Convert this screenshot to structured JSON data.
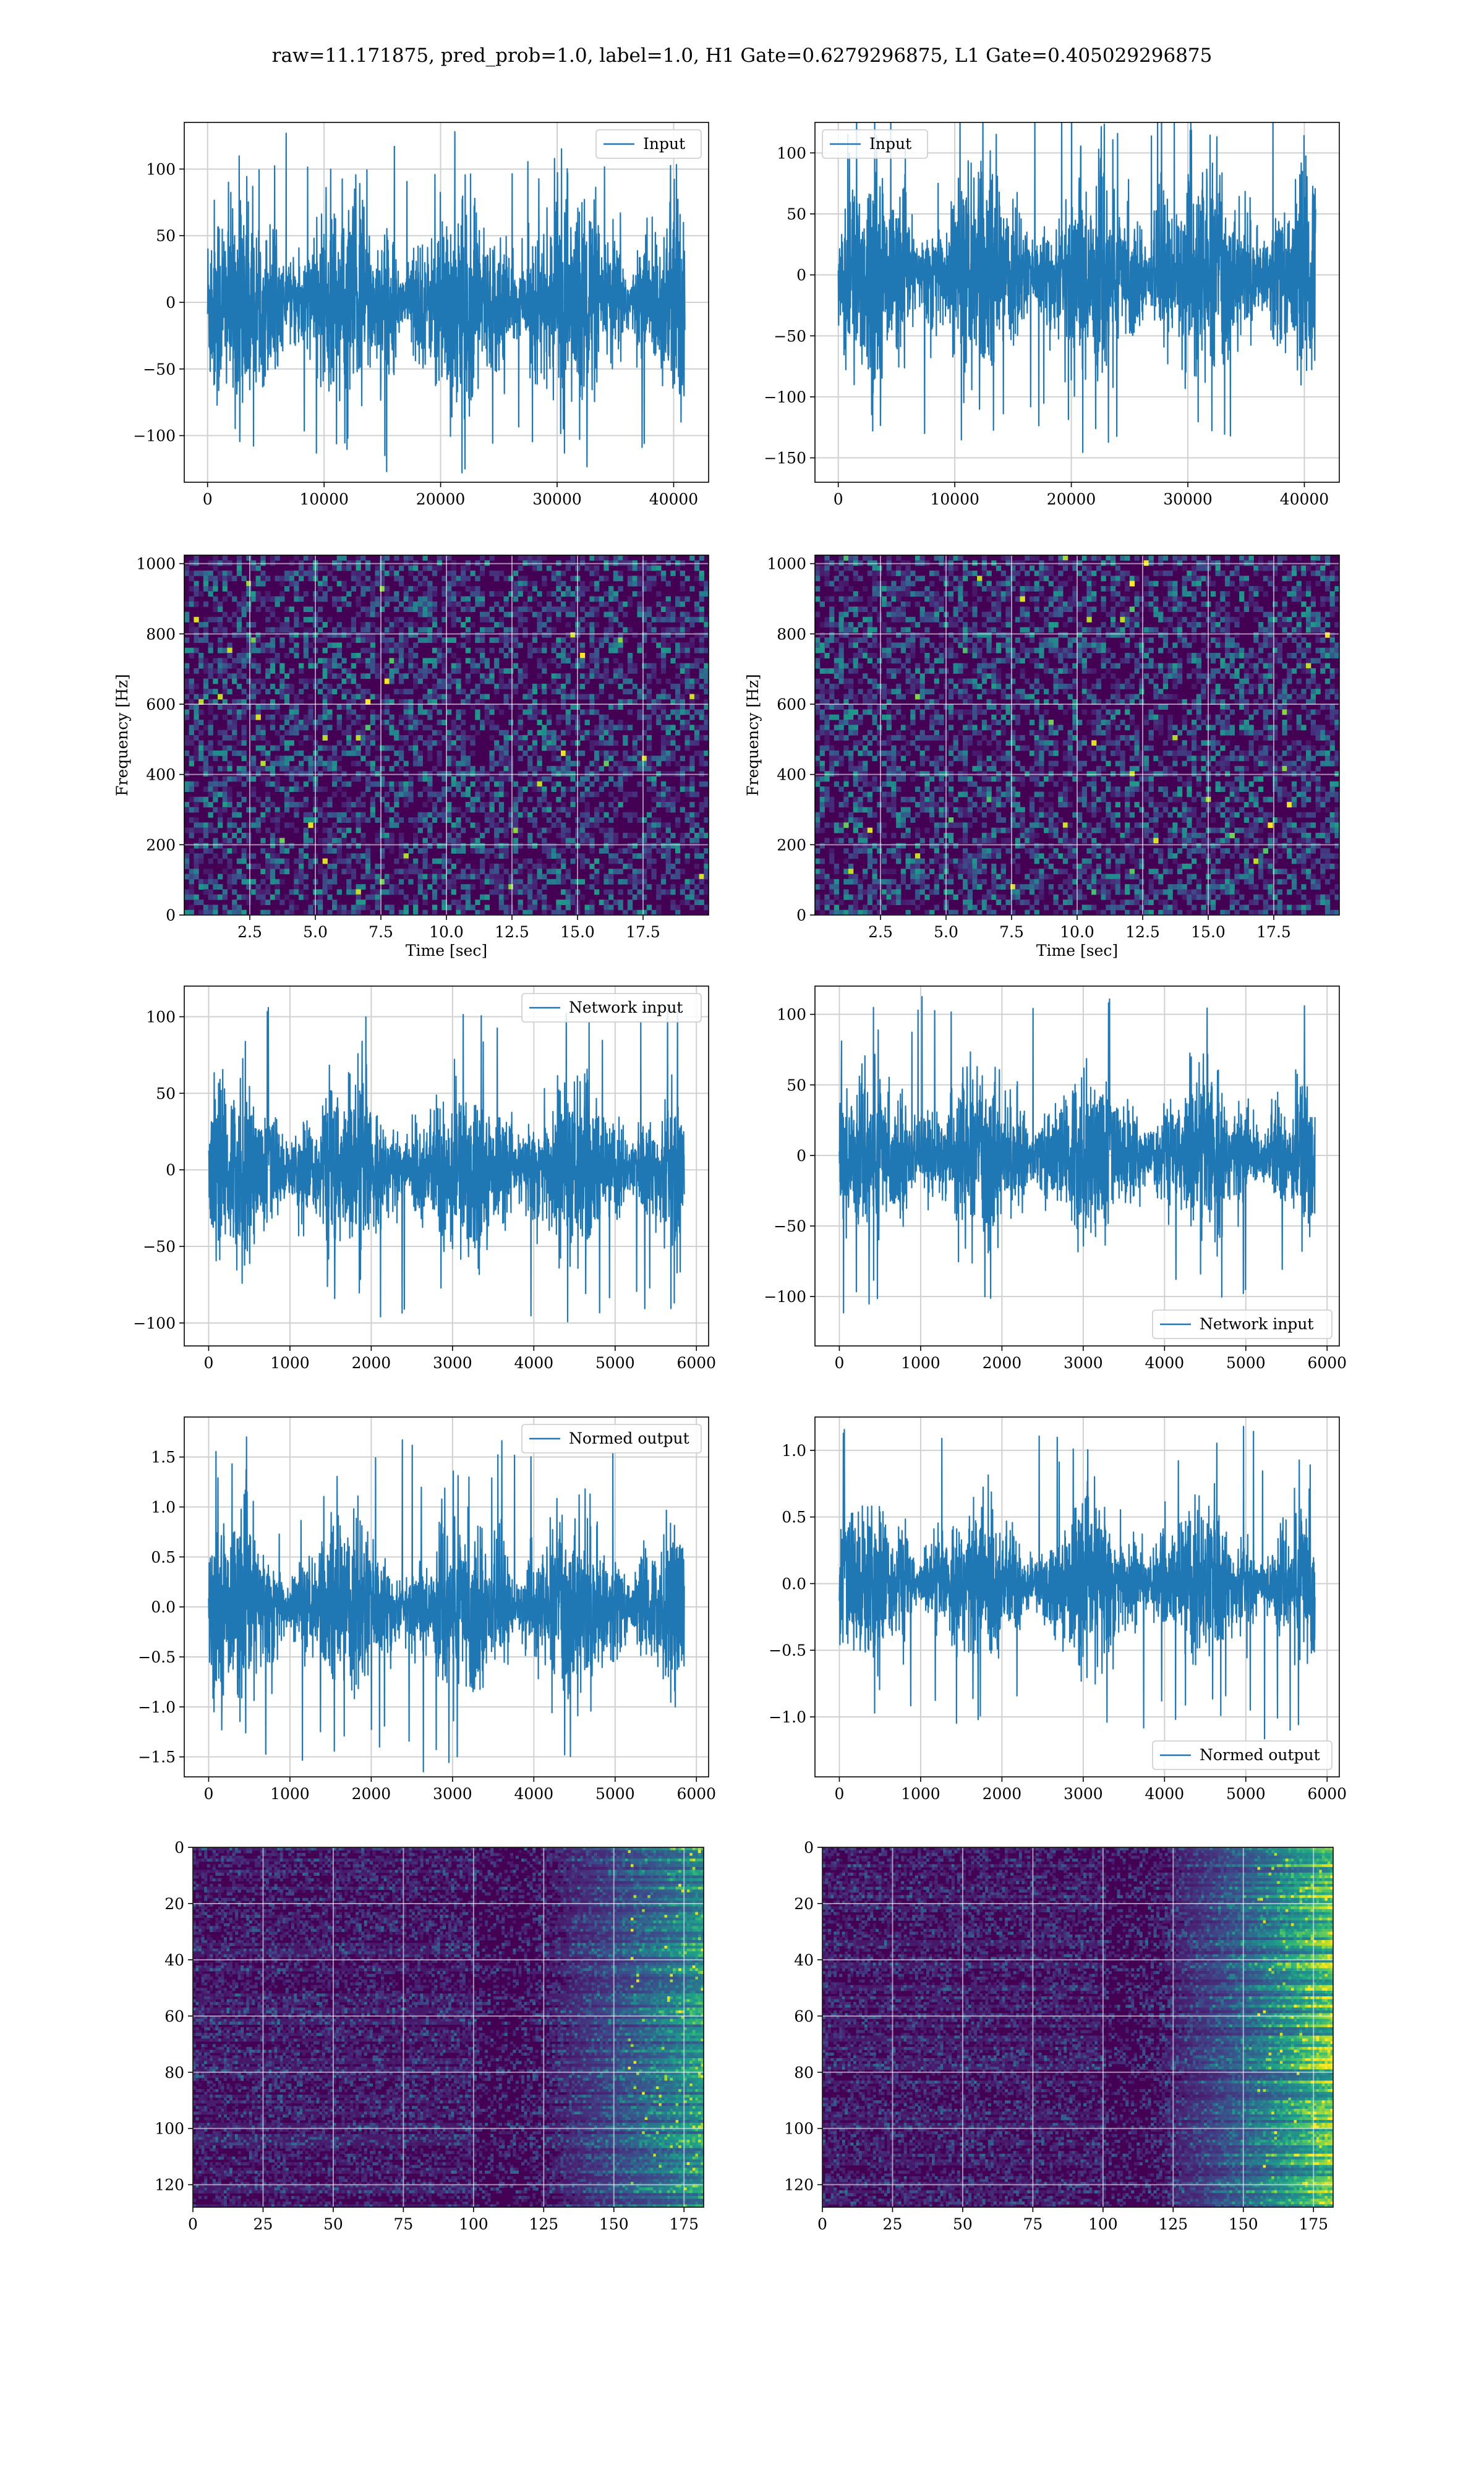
{
  "figure": {
    "title": "raw=11.171875, pred_prob=1.0, label=1.0, H1 Gate=0.6279296875, L1 Gate=0.405029296875"
  },
  "colors": {
    "line": "#1f77b4",
    "viridis_low": "#440154",
    "viridis_mid": "#21918c",
    "viridis_high": "#fde725",
    "grid": "#d0d0d0"
  },
  "chart_data": [
    {
      "id": "p11",
      "type": "line",
      "noise_amp": 35,
      "spike_max": 128,
      "xlim": [
        -2000,
        43000
      ],
      "ylim": [
        -135,
        135
      ],
      "xticks": [
        0,
        10000,
        20000,
        30000,
        40000
      ],
      "yticks": [
        -100,
        -50,
        0,
        50,
        100
      ],
      "x_range": [
        0,
        40960
      ],
      "legend": "Input",
      "legend_loc": "upper right",
      "xlabel": "",
      "ylabel": ""
    },
    {
      "id": "p12",
      "type": "line",
      "noise_amp": 38,
      "spike_max": 150,
      "xlim": [
        -2000,
        43000
      ],
      "ylim": [
        -170,
        125
      ],
      "xticks": [
        0,
        10000,
        20000,
        30000,
        40000
      ],
      "yticks": [
        -150,
        -100,
        -50,
        0,
        50,
        100
      ],
      "x_range": [
        0,
        40960
      ],
      "legend": "Input",
      "legend_loc": "upper left",
      "xlabel": "",
      "ylabel": ""
    },
    {
      "id": "p21",
      "type": "heatmap",
      "xlim": [
        0,
        20
      ],
      "ylim": [
        0,
        1024
      ],
      "xticks": [
        2.5,
        5.0,
        7.5,
        10.0,
        12.5,
        15.0,
        17.5
      ],
      "yticks": [
        0,
        200,
        400,
        600,
        800,
        1000
      ],
      "xlabel": "Time [sec]",
      "ylabel": "Frequency [Hz]"
    },
    {
      "id": "p22",
      "type": "heatmap",
      "xlim": [
        0,
        20
      ],
      "ylim": [
        0,
        1024
      ],
      "xticks": [
        2.5,
        5.0,
        7.5,
        10.0,
        12.5,
        15.0,
        17.5
      ],
      "yticks": [
        0,
        200,
        400,
        600,
        800,
        1000
      ],
      "xlabel": "Time [sec]",
      "ylabel": "Frequency [Hz]"
    },
    {
      "id": "p31",
      "type": "line",
      "noise_amp": 25,
      "spike_max": 110,
      "xlim": [
        -300,
        6150
      ],
      "ylim": [
        -115,
        120
      ],
      "xticks": [
        0,
        1000,
        2000,
        3000,
        4000,
        5000,
        6000
      ],
      "yticks": [
        -100,
        -50,
        0,
        50,
        100
      ],
      "x_range": [
        0,
        5850
      ],
      "legend": "Network input",
      "legend_loc": "upper right",
      "xlabel": "",
      "ylabel": ""
    },
    {
      "id": "p32",
      "type": "line",
      "noise_amp": 25,
      "spike_max": 115,
      "xlim": [
        -300,
        6150
      ],
      "ylim": [
        -135,
        120
      ],
      "xticks": [
        0,
        1000,
        2000,
        3000,
        4000,
        5000,
        6000
      ],
      "yticks": [
        -100,
        -50,
        0,
        50,
        100
      ],
      "x_range": [
        0,
        5850
      ],
      "legend": "Network input",
      "legend_loc": "lower right",
      "xlabel": "",
      "ylabel": ""
    },
    {
      "id": "p41",
      "type": "line",
      "noise_amp": 0.38,
      "spike_max": 1.7,
      "xlim": [
        -300,
        6150
      ],
      "ylim": [
        -1.7,
        1.9
      ],
      "xticks": [
        0,
        1000,
        2000,
        3000,
        4000,
        5000,
        6000
      ],
      "yticks": [
        -1.5,
        -1.0,
        -0.5,
        0.0,
        0.5,
        1.0,
        1.5
      ],
      "x_range": [
        0,
        5850
      ],
      "legend": "Normed output",
      "legend_loc": "upper right",
      "xlabel": "",
      "ylabel": ""
    },
    {
      "id": "p42",
      "type": "line",
      "noise_amp": 0.26,
      "spike_max": 1.2,
      "xlim": [
        -300,
        6150
      ],
      "ylim": [
        -1.45,
        1.25
      ],
      "xticks": [
        0,
        1000,
        2000,
        3000,
        4000,
        5000,
        6000
      ],
      "yticks": [
        -1.0,
        -0.5,
        0.0,
        0.5,
        1.0
      ],
      "x_range": [
        0,
        5850
      ],
      "legend": "Normed output",
      "legend_loc": "lower right",
      "xlabel": "",
      "ylabel": ""
    },
    {
      "id": "p51",
      "type": "heatmap",
      "xlim": [
        0,
        182
      ],
      "ylim": [
        128,
        0
      ],
      "xticks": [
        0,
        25,
        50,
        75,
        100,
        125,
        150,
        175
      ],
      "yticks": [
        0,
        20,
        40,
        60,
        80,
        100,
        120
      ],
      "xlabel": "",
      "ylabel": ""
    },
    {
      "id": "p52",
      "type": "heatmap",
      "xlim": [
        0,
        182
      ],
      "ylim": [
        128,
        0
      ],
      "xticks": [
        0,
        25,
        50,
        75,
        100,
        125,
        150,
        175
      ],
      "yticks": [
        0,
        20,
        40,
        60,
        80,
        100,
        120
      ],
      "xlabel": "",
      "ylabel": ""
    }
  ]
}
